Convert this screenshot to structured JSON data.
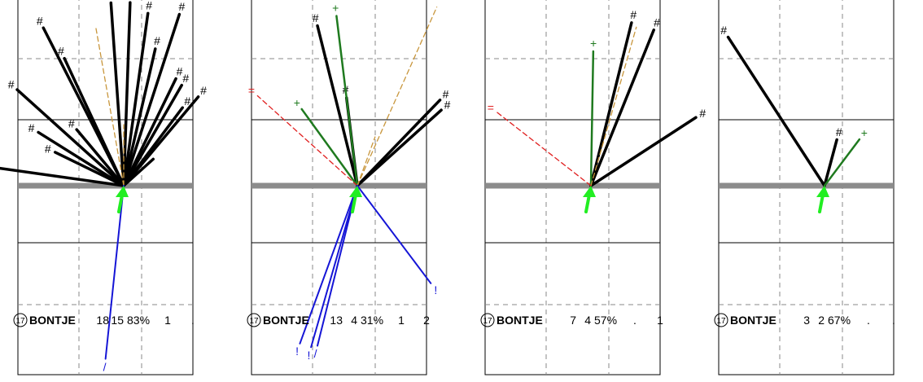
{
  "chart_data": [
    {
      "type": "spray-chart",
      "panel": 1,
      "info": {
        "number": "17",
        "name": "BONTJE",
        "a": "18",
        "b": "15",
        "pct": "83%",
        "c": "1",
        "d": "."
      },
      "spokes": [
        {
          "kind": "hit",
          "angle": -82,
          "r": 2.55,
          "label": ""
        },
        {
          "kind": "hit",
          "angle": -64,
          "r": 1.25,
          "label": "#"
        },
        {
          "kind": "hit",
          "angle": -58,
          "r": 1.65,
          "label": "#"
        },
        {
          "kind": "hit",
          "angle": -48,
          "r": 2.35,
          "label": "#"
        },
        {
          "kind": "hit",
          "angle": -40,
          "r": 1.2,
          "label": "#"
        },
        {
          "kind": "hit",
          "angle": -27,
          "r": 2.9,
          "label": "#"
        },
        {
          "kind": "hit",
          "angle": -25,
          "r": 2.3,
          "label": "#"
        },
        {
          "kind": "hit",
          "angle": -4,
          "r": 3.0,
          "label": "#"
        },
        {
          "kind": "hit",
          "angle": 2,
          "r": 3.0,
          "label": "#"
        },
        {
          "kind": "hit",
          "angle": 8,
          "r": 2.85,
          "label": "#"
        },
        {
          "kind": "hit",
          "angle": 13,
          "r": 2.3,
          "label": "#"
        },
        {
          "kind": "hit",
          "angle": 18,
          "r": 2.95,
          "label": "#"
        },
        {
          "kind": "hit",
          "angle": 26,
          "r": 1.95,
          "label": "#"
        },
        {
          "kind": "hit",
          "angle": 30,
          "r": 1.9,
          "label": "#"
        },
        {
          "kind": "hit",
          "angle": 37,
          "r": 1.6,
          "label": "#"
        },
        {
          "kind": "hit",
          "angle": 40,
          "r": 1.9,
          "label": "#"
        },
        {
          "kind": "hit",
          "angle": 48,
          "r": 0.65,
          "label": ""
        },
        {
          "kind": "out",
          "angle": -10,
          "r": 2.65,
          "label": ""
        },
        {
          "kind": "out",
          "angle": 0,
          "r": 1.0,
          "label": ""
        },
        {
          "kind": "ground",
          "angle": -174,
          "r": 2.85,
          "label": "/"
        }
      ]
    },
    {
      "type": "spray-chart",
      "panel": 2,
      "info": {
        "number": "17",
        "name": "BONTJE",
        "a": "13",
        "b": "4",
        "pct": "31%",
        "c": "1",
        "d": "2"
      },
      "spokes": [
        {
          "kind": "hit",
          "angle": -14,
          "r": 2.7,
          "label": "#"
        },
        {
          "kind": "hit",
          "angle": -7,
          "r": 1.45,
          "label": "#"
        },
        {
          "kind": "hit",
          "angle": 44,
          "r": 1.95,
          "label": "#"
        },
        {
          "kind": "hit",
          "angle": 48,
          "r": 1.85,
          "label": "#"
        },
        {
          "kind": "plus",
          "angle": -7,
          "r": 2.8,
          "label": "+"
        },
        {
          "kind": "plus",
          "angle": -36,
          "r": 1.55,
          "label": "+"
        },
        {
          "kind": "out",
          "angle": 24,
          "r": 3.2,
          "label": ""
        },
        {
          "kind": "out",
          "angle": 20,
          "r": 0.85,
          "label": ""
        },
        {
          "kind": "foul",
          "angle": -48,
          "r": 2.2,
          "label": "="
        },
        {
          "kind": "ground",
          "angle": -160,
          "r": 2.75,
          "label": "!"
        },
        {
          "kind": "ground",
          "angle": -164,
          "r": 2.75,
          "label": "!"
        },
        {
          "kind": "ground",
          "angle": 143,
          "r": 2.0,
          "label": "!"
        },
        {
          "kind": "ground",
          "angle": -166,
          "r": 2.7,
          "label": "/"
        }
      ]
    },
    {
      "type": "spray-chart",
      "panel": 3,
      "info": {
        "number": "17",
        "name": "BONTJE",
        "a": "7",
        "b": "4",
        "pct": "57%",
        "c": ".",
        "d": "1"
      },
      "spokes": [
        {
          "kind": "hit",
          "angle": 14,
          "r": 2.75,
          "label": "#"
        },
        {
          "kind": "hit",
          "angle": 22,
          "r": 2.75,
          "label": "#"
        },
        {
          "kind": "hit",
          "angle": 57,
          "r": 2.05,
          "label": "#"
        },
        {
          "kind": "plus",
          "angle": 1,
          "r": 2.2,
          "label": "+"
        },
        {
          "kind": "out",
          "angle": 16,
          "r": 2.7,
          "label": ""
        },
        {
          "kind": "foul",
          "angle": -52,
          "r": 1.95,
          "label": "="
        }
      ]
    },
    {
      "type": "spray-chart",
      "panel": 4,
      "info": {
        "number": "17",
        "name": "BONTJE",
        "a": "3",
        "b": "2",
        "pct": "67%",
        "c": ".",
        "d": "."
      },
      "spokes": [
        {
          "kind": "hit",
          "angle": -33,
          "r": 2.9,
          "label": "#"
        },
        {
          "kind": "hit",
          "angle": 15,
          "r": 0.78,
          "label": "#"
        },
        {
          "kind": "plus",
          "angle": 37,
          "r": 0.95,
          "label": "+"
        }
      ]
    }
  ]
}
